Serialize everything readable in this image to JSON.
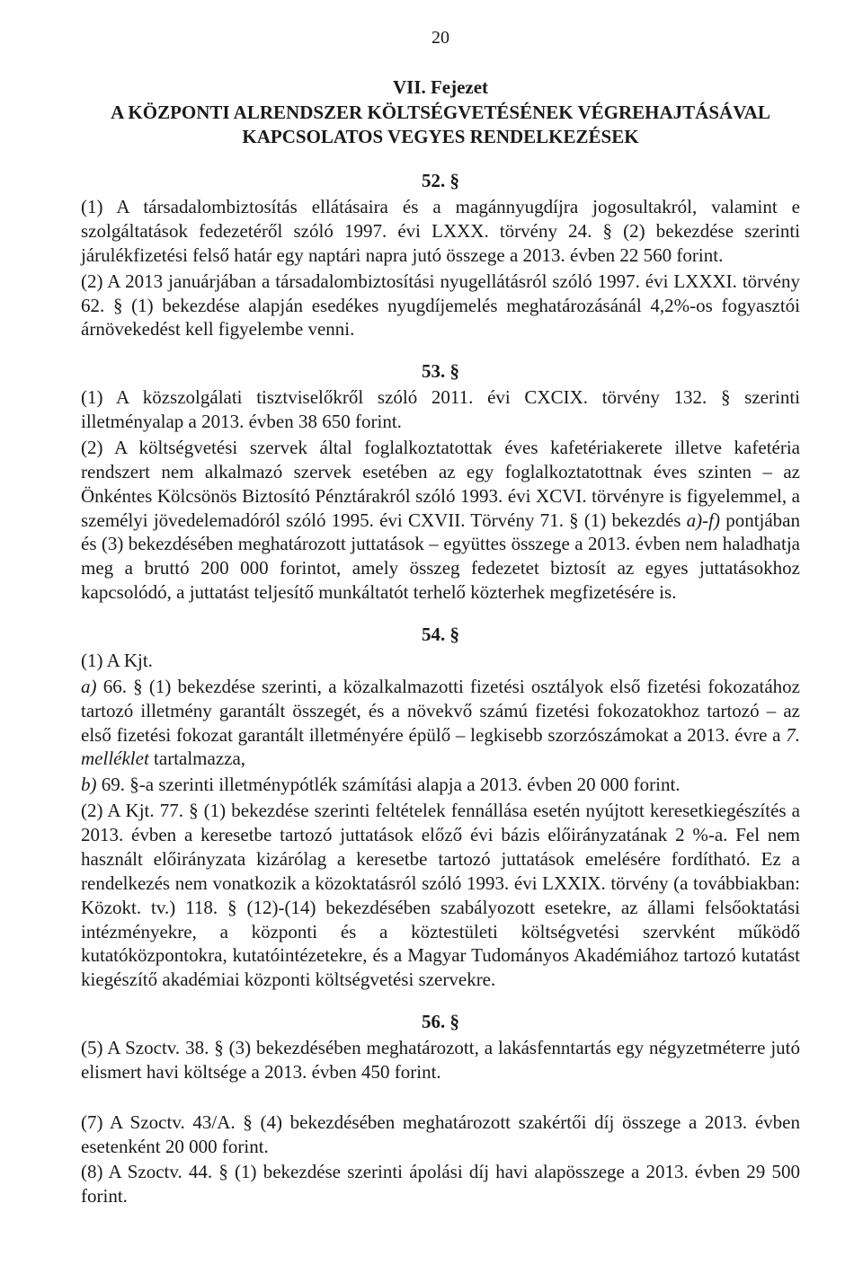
{
  "page_number": "20",
  "chapter": {
    "heading": "VII. Fejezet",
    "title": "A KÖZPONTI ALRENDSZER KÖLTSÉGVETÉSÉNEK VÉGREHAJTÁSÁVAL KAPCSOLATOS VEGYES RENDELKEZÉSEK"
  },
  "s52": {
    "number": "52. §",
    "p1": "(1) A társadalombiztosítás ellátásaira és a magánnyugdíjra jogosultakról, valamint e szolgáltatások fedezetéről szóló 1997. évi LXXX. törvény 24. § (2) bekezdése szerinti járulékfizetési felső határ egy naptári napra jutó összege a 2013. évben 22 560 forint.",
    "p2": "(2) A 2013 januárjában a társadalombiztosítási nyugellátásról szóló 1997. évi LXXXI. törvény 62. § (1) bekezdése alapján esedékes nyugdíjemelés meghatározásánál 4,2%-os fogyasztói árnövekedést kell figyelembe venni."
  },
  "s53": {
    "number": "53. §",
    "p1": "(1) A közszolgálati tisztviselőkről szóló 2011. évi CXCIX. törvény 132. § szerinti illetményalap a 2013. évben 38 650 forint.",
    "p2a": "(2) A költségvetési szervek által foglalkoztatottak éves kafetériakerete illetve kafetéria rendszert nem alkalmazó szervek esetében az egy foglalkoztatottnak éves szinten – az Önkéntes Kölcsönös Biztosító Pénztárakról szóló 1993. évi XCVI. törvényre is figyelemmel, a személyi jövedelemadóról szóló 1995. évi CXVII. Törvény 71. § (1) bekezdés ",
    "p2_italic": "a)-f)",
    "p2b": " pontjában és (3) bekezdésében meghatározott juttatások – együttes összege a 2013. évben nem haladhatja meg a bruttó 200 000 forintot, amely összeg fedezetet biztosít az egyes juttatásokhoz kapcsolódó, a juttatást teljesítő munkáltatót terhelő közterhek megfizetésére is."
  },
  "s54": {
    "number": "54. §",
    "p1_lead": "(1) A Kjt.",
    "p1a_italic": "a)",
    "p1a": " 66. § (1) bekezdése szerinti, a közalkalmazotti fizetési osztályok első fizetési fokozatához tartozó illetmény garantált összegét, és a növekvő számú fizetési fokozatokhoz tartozó – az első fizetési fokozat garantált illetményére épülő – legkisebb szorzószámokat a 2013. évre a ",
    "p1a_italic2": "7. melléklet",
    "p1a_tail": " tartalmazza,",
    "p1b_italic": "b)",
    "p1b": " 69. §-a szerinti illetménypótlék számítási alapja a 2013. évben 20 000 forint.",
    "p2": "(2) A Kjt. 77. § (1) bekezdése szerinti feltételek fennállása esetén nyújtott keresetkiegészítés a 2013. évben a keresetbe tartozó juttatások előző évi bázis előirányzatának 2 %-a. Fel nem használt előirányzata kizárólag a keresetbe tartozó juttatások emelésére fordítható. Ez a rendelkezés nem vonatkozik a közoktatásról szóló 1993. évi LXXIX. törvény (a továbbiakban: Közokt. tv.) 118. § (12)-(14) bekezdésében szabályozott esetekre, az állami felsőoktatási intézményekre, a központi és a köztestületi költségvetési szervként működő kutatóközpontokra, kutatóintézetekre, és a Magyar Tudományos Akadémiához tartozó kutatást kiegészítő akadémiai központi költségvetési szervekre."
  },
  "s56": {
    "number": "56. §",
    "p5": "(5) A Szoctv. 38. § (3) bekezdésében meghatározott, a lakásfenntartás egy négyzetméterre jutó elismert havi költsége a 2013. évben 450 forint.",
    "p7": "(7) A Szoctv. 43/A. § (4) bekezdésében meghatározott szakértői díj összege a 2013. évben esetenként 20 000 forint.",
    "p8": "(8) A Szoctv. 44. § (1) bekezdése szerinti ápolási díj havi alapösszege a 2013. évben 29 500 forint."
  }
}
